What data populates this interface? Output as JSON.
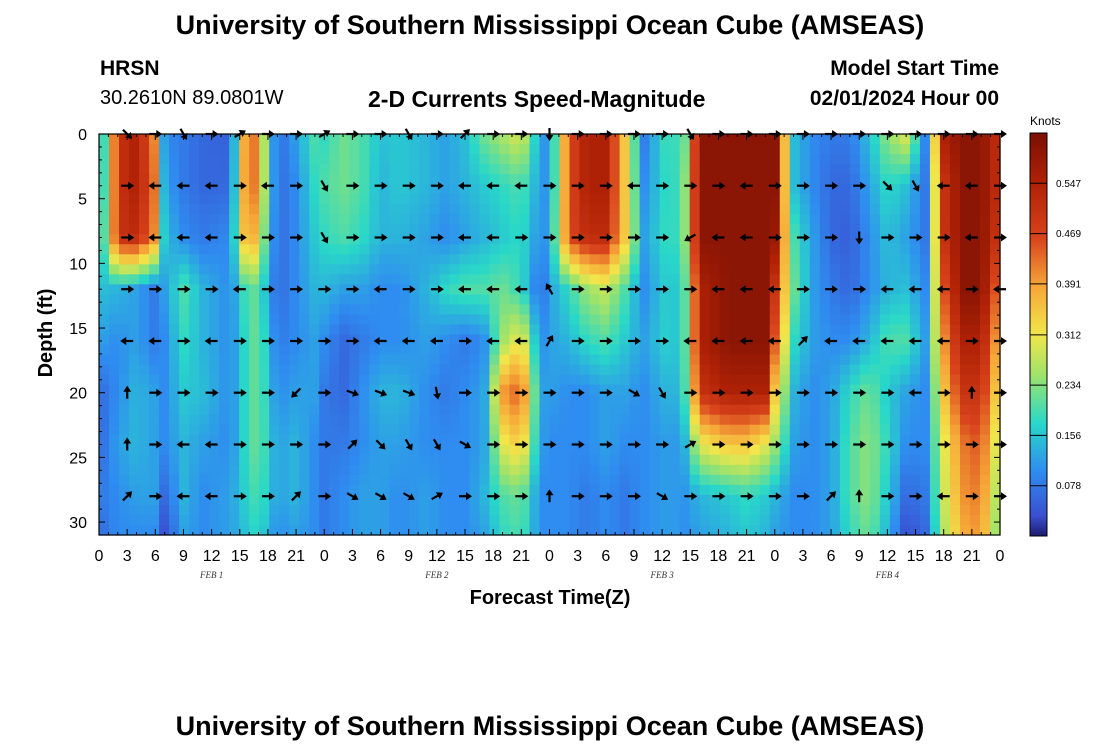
{
  "header": {
    "title": "University of Southern Mississippi Ocean Cube (AMSEAS)",
    "station": "HRSN",
    "location": "30.2610N  89.0801W",
    "subtitle": "2-D Currents Speed-Magnitude",
    "model_start_label": "Model Start Time",
    "model_start_value": "02/01/2024 Hour 00"
  },
  "footer": {
    "title": "University of Southern Mississippi Ocean Cube (AMSEAS)"
  },
  "chart_data": {
    "type": "heatmap",
    "title": "2-D Currents Speed-Magnitude",
    "xlabel": "Forecast Time(Z)",
    "ylabel": "Depth (ft)",
    "x_hours": [
      0,
      96
    ],
    "x_tick_labels": [
      "0",
      "3",
      "6",
      "9",
      "12",
      "15",
      "18",
      "21",
      "0",
      "3",
      "6",
      "9",
      "12",
      "15",
      "18",
      "21",
      "0",
      "3",
      "6",
      "9",
      "12",
      "15",
      "18",
      "21",
      "0",
      "3",
      "6",
      "9",
      "12",
      "15",
      "18",
      "21",
      "0"
    ],
    "day_labels": [
      "FEB 1",
      "FEB 2",
      "FEB 3",
      "FEB 4"
    ],
    "ylim": [
      0,
      31
    ],
    "y_ticks": [
      0,
      5,
      10,
      15,
      20,
      25,
      30
    ],
    "colorbar": {
      "label": "Knots",
      "range": [
        0,
        0.625
      ],
      "ticks": [
        "0.078",
        "0.156",
        "0.234",
        "0.312",
        "0.391",
        "0.469",
        "0.547"
      ],
      "tick_values": [
        0.078,
        0.156,
        0.234,
        0.312,
        0.391,
        0.469,
        0.547
      ]
    },
    "grid_times": [
      0,
      2,
      4,
      6,
      7,
      9,
      11,
      14,
      16,
      17,
      19,
      21,
      23,
      24,
      26,
      28,
      30,
      32,
      35,
      37,
      39,
      41,
      43,
      45,
      47,
      48,
      50,
      52,
      54,
      56,
      58,
      61,
      62,
      64,
      67,
      69,
      71,
      72,
      74,
      76,
      78,
      80,
      82,
      84,
      86,
      88,
      90,
      92,
      94,
      96
    ],
    "grid_depths": [
      0,
      4,
      8,
      12,
      16,
      20,
      24,
      28,
      31
    ],
    "speed": [
      [
        0.08,
        0.5,
        0.55,
        0.4,
        0.1,
        0.08,
        0.06,
        0.05,
        0.5,
        0.35,
        0.06,
        0.12,
        0.2,
        0.18,
        0.22,
        0.2,
        0.15,
        0.16,
        0.14,
        0.12,
        0.15,
        0.22,
        0.26,
        0.3,
        0.12,
        0.1,
        0.45,
        0.55,
        0.55,
        0.35,
        0.08,
        0.22,
        0.12,
        0.6,
        0.6,
        0.6,
        0.6,
        0.6,
        0.15,
        0.1,
        0.08,
        0.08,
        0.15,
        0.24,
        0.3,
        0.1,
        0.55,
        0.6,
        0.6,
        0.5
      ],
      [
        0.08,
        0.5,
        0.55,
        0.42,
        0.12,
        0.08,
        0.06,
        0.06,
        0.5,
        0.35,
        0.06,
        0.1,
        0.18,
        0.2,
        0.22,
        0.2,
        0.14,
        0.16,
        0.14,
        0.12,
        0.14,
        0.16,
        0.18,
        0.2,
        0.12,
        0.1,
        0.45,
        0.55,
        0.55,
        0.35,
        0.1,
        0.2,
        0.15,
        0.6,
        0.6,
        0.6,
        0.6,
        0.6,
        0.15,
        0.1,
        0.06,
        0.06,
        0.12,
        0.18,
        0.15,
        0.08,
        0.5,
        0.6,
        0.6,
        0.5
      ],
      [
        0.1,
        0.5,
        0.52,
        0.4,
        0.15,
        0.1,
        0.08,
        0.1,
        0.45,
        0.3,
        0.06,
        0.1,
        0.16,
        0.18,
        0.2,
        0.18,
        0.14,
        0.14,
        0.12,
        0.1,
        0.12,
        0.14,
        0.16,
        0.18,
        0.1,
        0.12,
        0.45,
        0.52,
        0.52,
        0.35,
        0.12,
        0.2,
        0.15,
        0.6,
        0.6,
        0.6,
        0.6,
        0.58,
        0.2,
        0.12,
        0.06,
        0.05,
        0.1,
        0.15,
        0.12,
        0.08,
        0.5,
        0.6,
        0.6,
        0.48
      ],
      [
        0.15,
        0.14,
        0.12,
        0.08,
        0.12,
        0.2,
        0.14,
        0.1,
        0.22,
        0.2,
        0.06,
        0.1,
        0.14,
        0.14,
        0.12,
        0.12,
        0.1,
        0.1,
        0.14,
        0.18,
        0.2,
        0.2,
        0.22,
        0.18,
        0.06,
        0.12,
        0.18,
        0.25,
        0.28,
        0.2,
        0.1,
        0.18,
        0.12,
        0.55,
        0.6,
        0.6,
        0.6,
        0.5,
        0.22,
        0.12,
        0.08,
        0.06,
        0.1,
        0.14,
        0.15,
        0.1,
        0.45,
        0.6,
        0.6,
        0.4
      ],
      [
        0.12,
        0.1,
        0.12,
        0.08,
        0.1,
        0.18,
        0.14,
        0.1,
        0.2,
        0.22,
        0.08,
        0.1,
        0.12,
        0.1,
        0.06,
        0.08,
        0.1,
        0.1,
        0.12,
        0.1,
        0.08,
        0.1,
        0.25,
        0.32,
        0.1,
        0.12,
        0.14,
        0.18,
        0.2,
        0.16,
        0.12,
        0.18,
        0.12,
        0.55,
        0.6,
        0.6,
        0.6,
        0.45,
        0.18,
        0.12,
        0.1,
        0.1,
        0.14,
        0.2,
        0.2,
        0.12,
        0.4,
        0.55,
        0.55,
        0.35
      ],
      [
        0.06,
        0.1,
        0.14,
        0.12,
        0.1,
        0.16,
        0.15,
        0.1,
        0.2,
        0.22,
        0.1,
        0.12,
        0.12,
        0.08,
        0.06,
        0.1,
        0.14,
        0.14,
        0.1,
        0.08,
        0.1,
        0.12,
        0.4,
        0.45,
        0.12,
        0.12,
        0.1,
        0.1,
        0.12,
        0.12,
        0.1,
        0.15,
        0.12,
        0.5,
        0.55,
        0.55,
        0.55,
        0.35,
        0.14,
        0.1,
        0.12,
        0.18,
        0.22,
        0.16,
        0.12,
        0.1,
        0.35,
        0.5,
        0.5,
        0.3
      ],
      [
        0.06,
        0.12,
        0.14,
        0.12,
        0.1,
        0.14,
        0.12,
        0.1,
        0.2,
        0.22,
        0.12,
        0.14,
        0.1,
        0.08,
        0.08,
        0.1,
        0.12,
        0.12,
        0.1,
        0.1,
        0.1,
        0.12,
        0.3,
        0.35,
        0.12,
        0.1,
        0.1,
        0.1,
        0.12,
        0.1,
        0.1,
        0.12,
        0.1,
        0.3,
        0.35,
        0.35,
        0.3,
        0.25,
        0.12,
        0.1,
        0.12,
        0.2,
        0.24,
        0.18,
        0.1,
        0.1,
        0.3,
        0.42,
        0.45,
        0.25
      ],
      [
        0.08,
        0.1,
        0.12,
        0.12,
        0.06,
        0.14,
        0.1,
        0.12,
        0.18,
        0.2,
        0.12,
        0.14,
        0.1,
        0.08,
        0.1,
        0.12,
        0.12,
        0.1,
        0.12,
        0.1,
        0.1,
        0.14,
        0.2,
        0.22,
        0.1,
        0.1,
        0.1,
        0.08,
        0.1,
        0.08,
        0.1,
        0.12,
        0.1,
        0.14,
        0.16,
        0.18,
        0.16,
        0.14,
        0.1,
        0.1,
        0.12,
        0.2,
        0.24,
        0.16,
        0.06,
        0.08,
        0.28,
        0.4,
        0.42,
        0.22
      ],
      [
        0.06,
        0.1,
        0.1,
        0.1,
        0.03,
        0.12,
        0.1,
        0.12,
        0.16,
        0.18,
        0.1,
        0.12,
        0.1,
        0.08,
        0.1,
        0.12,
        0.12,
        0.1,
        0.12,
        0.1,
        0.1,
        0.12,
        0.18,
        0.2,
        0.1,
        0.1,
        0.1,
        0.08,
        0.1,
        0.08,
        0.1,
        0.12,
        0.1,
        0.12,
        0.14,
        0.16,
        0.14,
        0.12,
        0.1,
        0.1,
        0.12,
        0.18,
        0.22,
        0.14,
        0.03,
        0.06,
        0.26,
        0.38,
        0.4,
        0.2
      ]
    ],
    "arrow_times": [
      3,
      6,
      9,
      12,
      15,
      18,
      21,
      24,
      27,
      30,
      33,
      36,
      39,
      42,
      45,
      48,
      51,
      54,
      57,
      60,
      63,
      66,
      69,
      72,
      75,
      78,
      81,
      84,
      87,
      90,
      93,
      96
    ],
    "arrow_depths": [
      0,
      4,
      8,
      12,
      16,
      20,
      24,
      28
    ],
    "arrow_dirs_deg": [
      [
        315,
        0,
        300,
        0,
        30,
        0,
        0,
        30,
        0,
        0,
        300,
        0,
        45,
        0,
        0,
        270,
        0,
        0,
        0,
        0,
        300,
        0,
        0,
        0,
        0,
        0,
        0,
        0,
        0,
        0,
        0,
        0
      ],
      [
        0,
        180,
        180,
        180,
        0,
        180,
        0,
        300,
        0,
        0,
        0,
        0,
        180,
        180,
        180,
        0,
        0,
        0,
        180,
        0,
        0,
        0,
        180,
        0,
        0,
        0,
        0,
        315,
        300,
        180,
        180,
        0
      ],
      [
        0,
        180,
        180,
        180,
        0,
        0,
        0,
        300,
        0,
        0,
        0,
        0,
        180,
        180,
        0,
        0,
        0,
        0,
        0,
        0,
        210,
        180,
        180,
        0,
        0,
        0,
        270,
        0,
        0,
        0,
        180,
        0
      ],
      [
        0,
        0,
        0,
        0,
        180,
        0,
        0,
        0,
        0,
        180,
        0,
        0,
        180,
        180,
        180,
        120,
        0,
        0,
        0,
        0,
        0,
        180,
        180,
        180,
        0,
        0,
        0,
        180,
        180,
        180,
        0,
        180
      ],
      [
        180,
        180,
        0,
        180,
        0,
        0,
        0,
        0,
        0,
        180,
        180,
        180,
        0,
        180,
        180,
        60,
        0,
        0,
        0,
        0,
        180,
        180,
        180,
        180,
        45,
        180,
        180,
        180,
        180,
        180,
        0,
        0
      ],
      [
        90,
        0,
        0,
        0,
        0,
        0,
        225,
        0,
        340,
        340,
        340,
        280,
        0,
        0,
        0,
        0,
        0,
        0,
        330,
        300,
        0,
        0,
        0,
        0,
        0,
        0,
        0,
        0,
        180,
        0,
        90,
        0
      ],
      [
        90,
        0,
        180,
        180,
        0,
        0,
        0,
        0,
        45,
        315,
        300,
        300,
        330,
        0,
        0,
        0,
        0,
        0,
        0,
        0,
        30,
        0,
        0,
        0,
        0,
        0,
        0,
        0,
        0,
        0,
        0,
        0
      ],
      [
        45,
        0,
        180,
        180,
        0,
        0,
        45,
        0,
        330,
        330,
        330,
        30,
        0,
        0,
        0,
        90,
        0,
        0,
        0,
        330,
        0,
        0,
        0,
        0,
        0,
        45,
        90,
        0,
        0,
        180,
        0,
        0
      ]
    ]
  }
}
